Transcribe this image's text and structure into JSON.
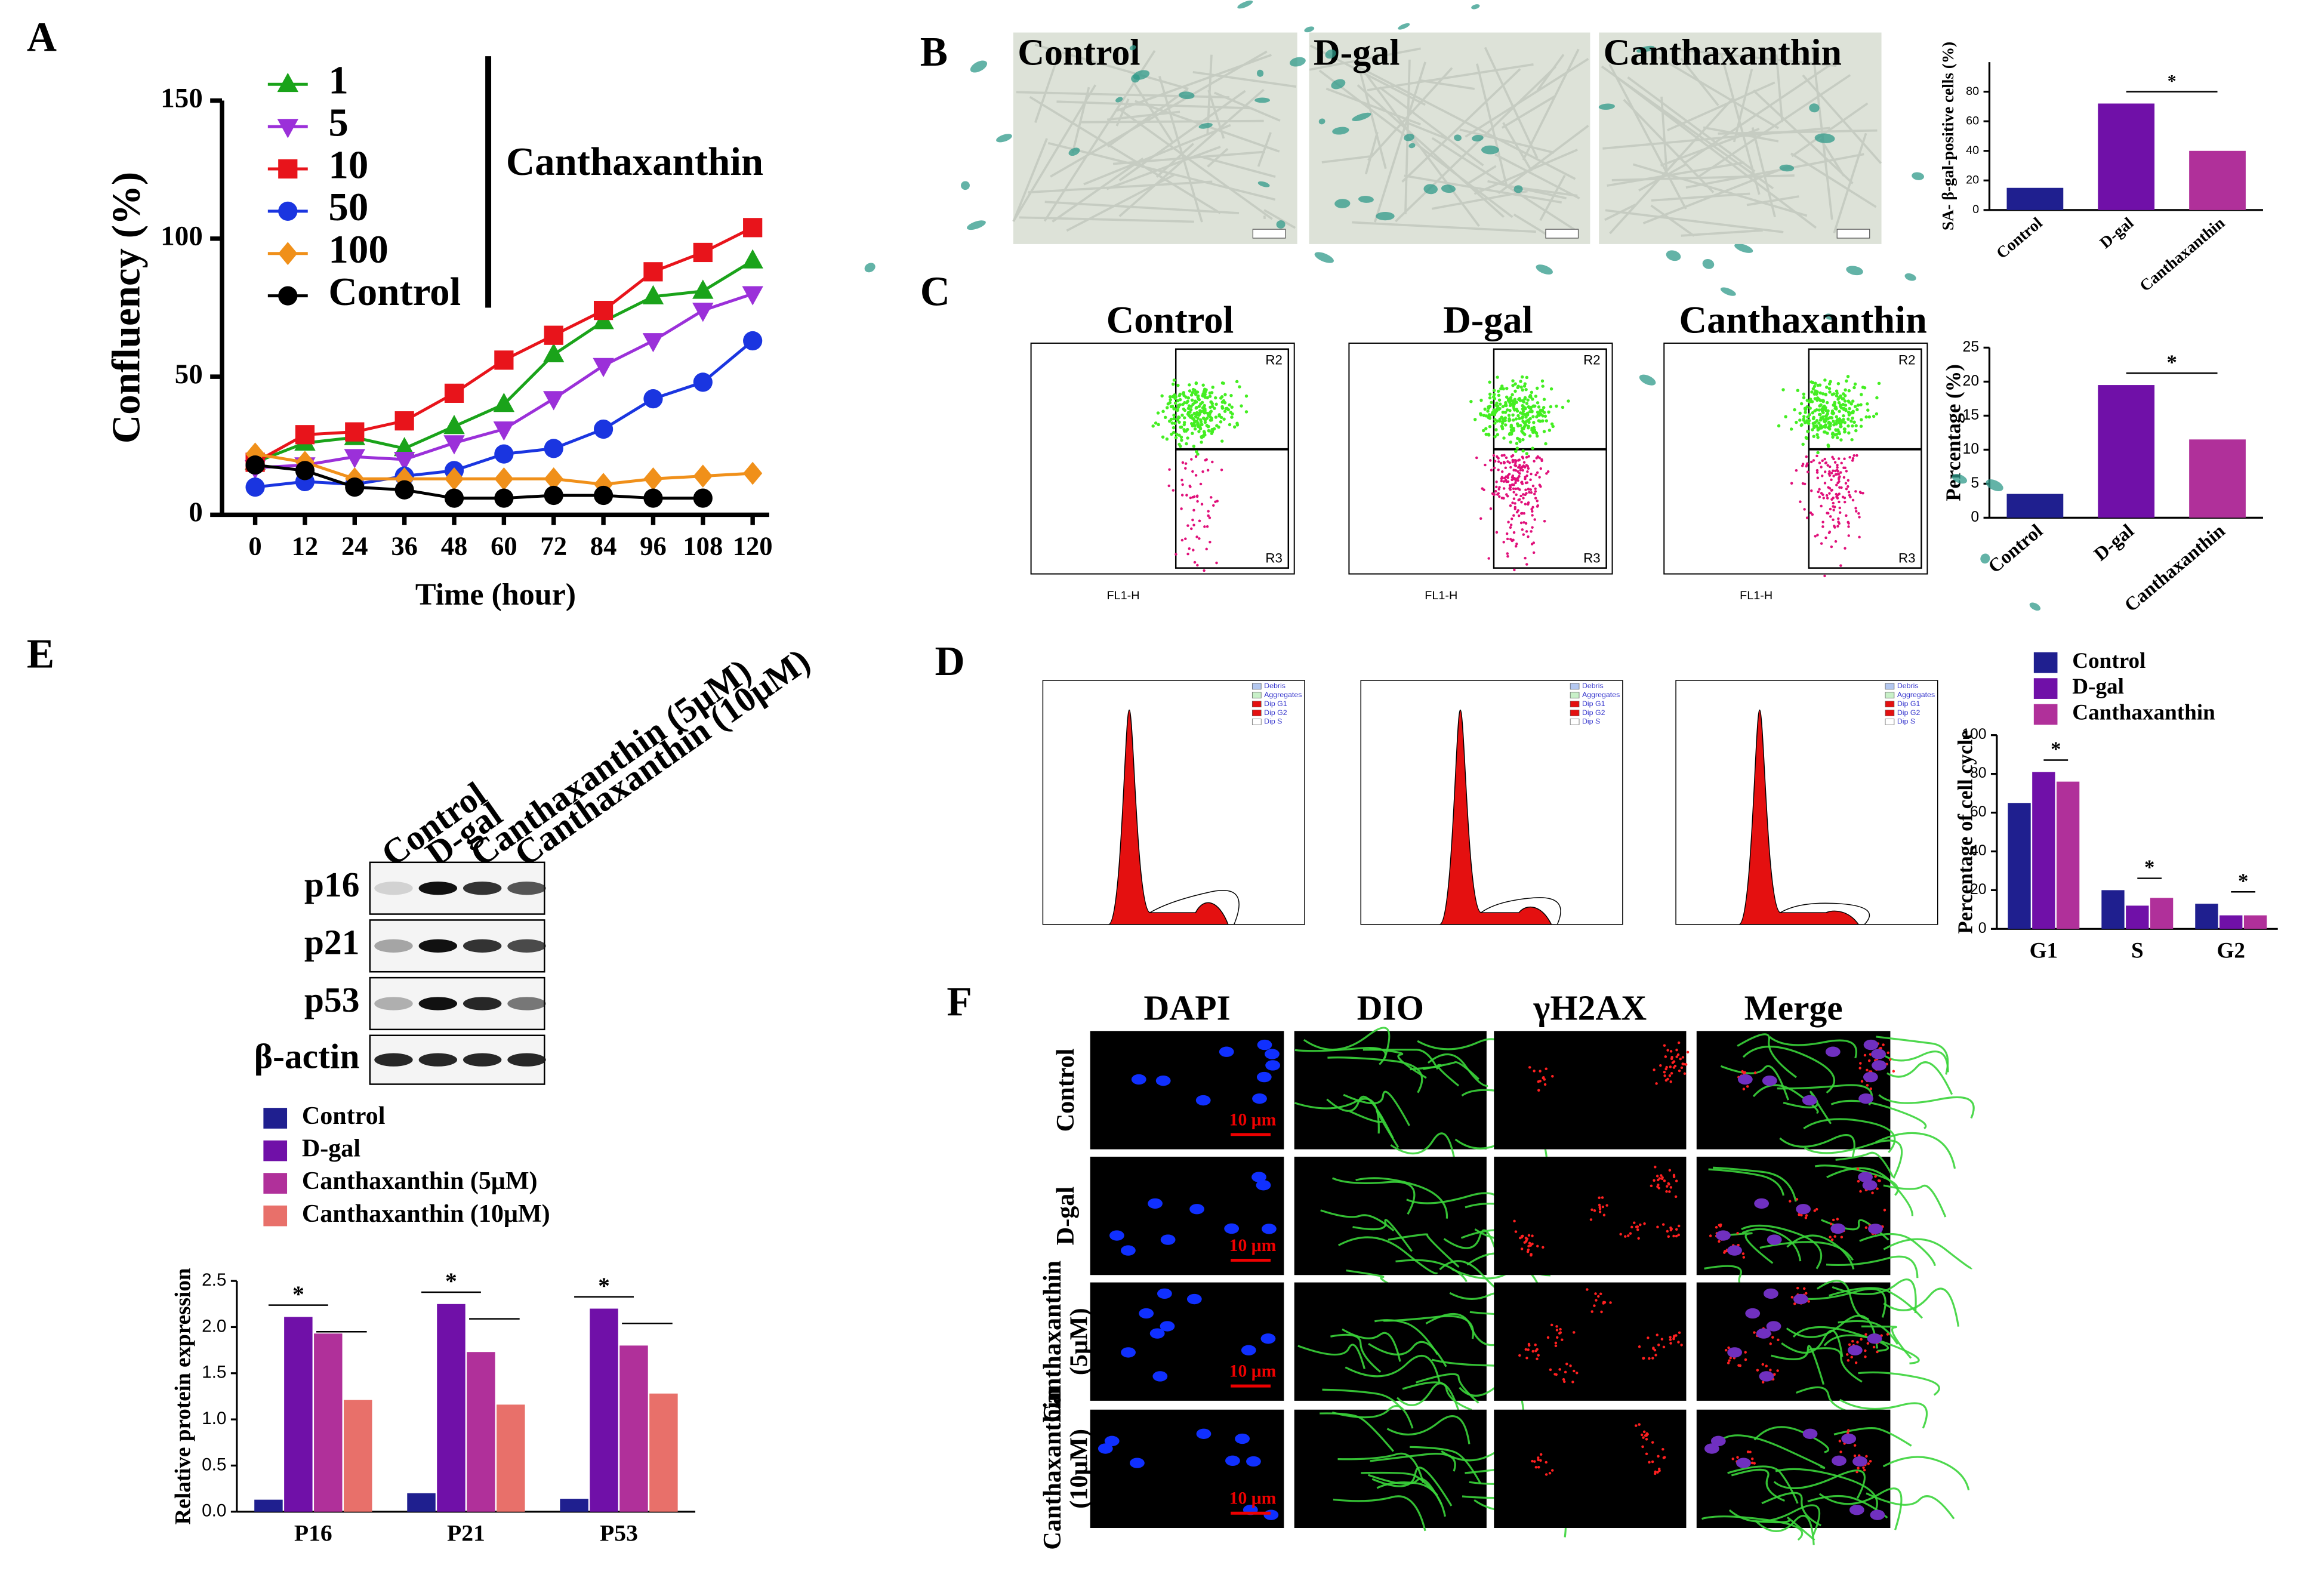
{
  "panel_labels": [
    "A",
    "B",
    "C",
    "D",
    "E",
    "F"
  ],
  "chart_data": [
    {
      "type": "line",
      "y_label": "Confluency (%)",
      "x_label": "Time (hour)",
      "annotation": "Canthaxanthin",
      "x": [
        0,
        12,
        24,
        36,
        48,
        60,
        72,
        84,
        96,
        108,
        120
      ],
      "xlim": [
        -8,
        124
      ],
      "xticks": [
        0,
        12,
        24,
        36,
        48,
        60,
        72,
        84,
        96,
        108,
        120
      ],
      "ylim": [
        0,
        150
      ],
      "yticks": [
        0,
        50,
        100,
        150
      ],
      "series": [
        {
          "name": "1",
          "color": "#1aa31a",
          "marker": "triangle-up",
          "values": [
            19,
            26,
            28,
            24,
            32,
            40,
            58,
            70,
            79,
            81,
            92
          ]
        },
        {
          "name": "5",
          "color": "#9b30d9",
          "marker": "triangle-down",
          "values": [
            17,
            18,
            21,
            20,
            26,
            31,
            42,
            54,
            63,
            74,
            80
          ]
        },
        {
          "name": "10",
          "color": "#e8141b",
          "marker": "square",
          "values": [
            19,
            29,
            30,
            34,
            44,
            56,
            65,
            74,
            88,
            95,
            104
          ]
        },
        {
          "name": "50",
          "color": "#1a35e0",
          "marker": "circle",
          "values": [
            10,
            12,
            11,
            14,
            16,
            22,
            24,
            31,
            42,
            48,
            63
          ]
        },
        {
          "name": "100",
          "color": "#f0901a",
          "marker": "diamond",
          "values": [
            22,
            19,
            13,
            13,
            13,
            13,
            13,
            11,
            13,
            14,
            15
          ]
        },
        {
          "name": "Control",
          "color": "#000000",
          "marker": "circle",
          "values": [
            18,
            16,
            10,
            9,
            6,
            6,
            7,
            7,
            6,
            6,
            null
          ]
        }
      ]
    },
    {
      "type": "bar",
      "y_label": "SA- β-gal-positive cells (%)",
      "categories": [
        "Control",
        "D-gal",
        "Canthaxanthin"
      ],
      "values": [
        15,
        72,
        40
      ],
      "colors": [
        "#1f1f8f",
        "#7010a8",
        "#b0309a"
      ],
      "ylim": [
        0,
        100
      ],
      "yticks": [
        0,
        20,
        40,
        60,
        80
      ],
      "annotations": [
        "*"
      ]
    },
    {
      "type": "bar",
      "y_label": "Percentage (%)",
      "categories": [
        "Control",
        "D-gal",
        "Canthaxanthin"
      ],
      "values": [
        3.5,
        19.5,
        11.5
      ],
      "colors": [
        "#1f1f8f",
        "#7010a8",
        "#b0309a"
      ],
      "ylim": [
        0,
        25
      ],
      "yticks": [
        0,
        5,
        10,
        15,
        20,
        25
      ],
      "annotations": [
        "*"
      ]
    },
    {
      "type": "bar",
      "y_label": "Percentage of cell cycle",
      "categories": [
        "G1",
        "S",
        "G2"
      ],
      "ylim": [
        0,
        100
      ],
      "yticks": [
        0,
        20,
        40,
        60,
        80,
        100
      ],
      "series": [
        {
          "name": "Control",
          "color": "#1f1f8f",
          "values": [
            65,
            20,
            13
          ]
        },
        {
          "name": "D-gal",
          "color": "#7010a8",
          "values": [
            81,
            12,
            7
          ]
        },
        {
          "name": "Canthaxanthin",
          "color": "#b0309a",
          "values": [
            76,
            16,
            7
          ]
        }
      ],
      "annotations": [
        "*",
        "*",
        "*"
      ]
    },
    {
      "type": "bar",
      "y_label": "Relative protein expression",
      "categories": [
        "P16",
        "P21",
        "P53"
      ],
      "ylim": [
        0,
        2.5
      ],
      "yticks": [
        {
          "value": 0,
          "label": "0.0"
        },
        {
          "value": 0.5,
          "label": "0.5"
        },
        {
          "value": 1,
          "label": "1.0"
        },
        {
          "value": 1.5,
          "label": "1.5"
        },
        {
          "value": 2,
          "label": "2.0"
        },
        {
          "value": 2.5,
          "label": "2.5"
        }
      ],
      "series": [
        {
          "name": "Control",
          "color": "#1f1f8f",
          "values": [
            0.13,
            0.2,
            0.14
          ]
        },
        {
          "name": "D-gal",
          "color": "#7010a8",
          "values": [
            2.11,
            2.25,
            2.2
          ]
        },
        {
          "name": "Canthaxanthin (5μM)",
          "color": "#b0309a",
          "values": [
            1.93,
            1.73,
            1.8
          ]
        },
        {
          "name": "Canthaxanthin (10μM)",
          "color": "#e8706a",
          "values": [
            1.21,
            1.16,
            1.28
          ]
        }
      ],
      "annotations": [
        "*",
        "*",
        "*"
      ]
    }
  ],
  "stain_images": {
    "labels": [
      "Control",
      "D-gal",
      "Canthaxanthin"
    ]
  },
  "flow_plots": {
    "titles": [
      "Control",
      "D-gal",
      "Canthaxanthin"
    ],
    "gates": [
      "R2",
      "R3"
    ],
    "axis_label": "FL1-H"
  },
  "cell_cycle_legend": [
    "Debris",
    "Aggregates",
    "Dip G1",
    "Dip G2",
    "Dip S"
  ],
  "western_blot": {
    "lanes": [
      "Control",
      "D-gal",
      "Canthaxanthin (5μM)",
      "Canthaxanthin (10μM)"
    ],
    "proteins": [
      "p16",
      "p21",
      "p53",
      "β-actin"
    ]
  },
  "immunofluorescence": {
    "columns": [
      "DAPI",
      "DIO",
      "γH2AX",
      "Merge"
    ],
    "rows": [
      [
        "Control"
      ],
      [
        "D-gal"
      ],
      [
        "Canthaxanthin",
        "(5μM)"
      ],
      [
        "Canthaxanthin",
        "(10μM)"
      ]
    ],
    "scale_bar": "10 μm"
  }
}
